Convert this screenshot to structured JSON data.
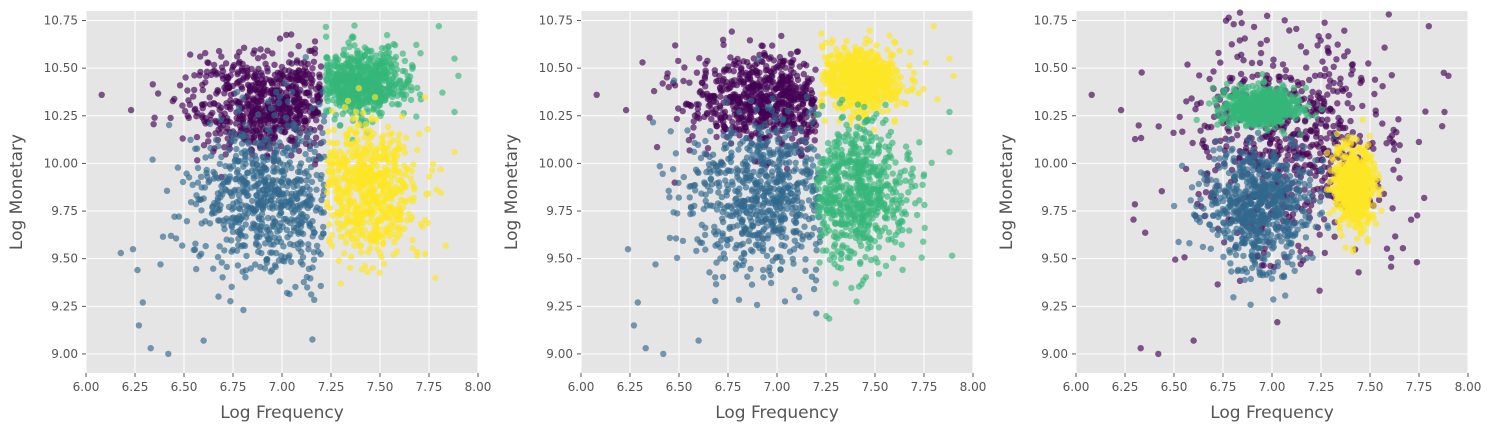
{
  "chart_data": [
    {
      "type": "scatter",
      "xlabel": "Log Frequency",
      "ylabel": "Log Monetary",
      "xlim": [
        6.0,
        8.0
      ],
      "ylim": [
        8.9,
        10.8
      ],
      "xticks": [
        "6.00",
        "6.25",
        "6.50",
        "6.75",
        "7.00",
        "7.25",
        "7.50",
        "7.75",
        "8.00"
      ],
      "yticks": [
        "9.00",
        "9.25",
        "9.50",
        "9.75",
        "10.00",
        "10.25",
        "10.50",
        "10.75"
      ],
      "grid": true,
      "series": [
        {
          "color": "#440154",
          "region": {
            "center": [
              6.95,
              10.32
            ],
            "spread": [
              0.22,
              0.13
            ],
            "x_max": 7.2
          },
          "outliers": [
            [
              6.08,
              10.36
            ],
            [
              6.23,
              10.28
            ],
            [
              6.35,
              10.24
            ],
            [
              6.48,
              10.41
            ],
            [
              6.62,
              10.53
            ]
          ]
        },
        {
          "color": "#31688e",
          "region": {
            "center": [
              6.93,
              9.8
            ],
            "spread": [
              0.2,
              0.22
            ],
            "x_max": 7.22
          },
          "outliers": [
            [
              6.24,
              9.55
            ],
            [
              6.29,
              9.27
            ],
            [
              6.33,
              9.03
            ],
            [
              6.27,
              9.15
            ],
            [
              6.42,
              9.0
            ],
            [
              6.6,
              9.07
            ],
            [
              6.38,
              9.47
            ],
            [
              6.34,
              10.02
            ]
          ]
        },
        {
          "color": "#35b779",
          "region": {
            "center": [
              7.4,
              10.42
            ],
            "spread": [
              0.12,
              0.09
            ],
            "x_min": 7.22
          },
          "outliers": [
            [
              7.8,
              10.72
            ],
            [
              7.9,
              10.46
            ],
            [
              7.88,
              10.55
            ],
            [
              7.88,
              10.27
            ]
          ]
        },
        {
          "color": "#fde725",
          "region": {
            "center": [
              7.42,
              9.87
            ],
            "spread": [
              0.13,
              0.17
            ],
            "x_min": 7.23
          },
          "outliers": [
            [
              7.3,
              9.37
            ],
            [
              7.88,
              10.06
            ]
          ]
        }
      ]
    },
    {
      "type": "scatter",
      "xlabel": "Log Frequency",
      "ylabel": "Log Monetary",
      "xlim": [
        6.0,
        8.0
      ],
      "ylim": [
        8.9,
        10.8
      ],
      "xticks": [
        "6.00",
        "6.25",
        "6.50",
        "6.75",
        "7.00",
        "7.25",
        "7.50",
        "7.75",
        "8.00"
      ],
      "yticks": [
        "9.00",
        "9.25",
        "9.50",
        "9.75",
        "10.00",
        "10.25",
        "10.50",
        "10.75"
      ],
      "grid": true,
      "series": [
        {
          "color": "#440154",
          "region": {
            "center": [
              6.97,
              10.33
            ],
            "spread": [
              0.2,
              0.12
            ],
            "x_max": 7.2
          },
          "outliers": [
            [
              6.08,
              10.36
            ],
            [
              6.23,
              10.28
            ],
            [
              6.35,
              10.24
            ],
            [
              6.48,
              10.41
            ]
          ]
        },
        {
          "color": "#31688e",
          "region": {
            "center": [
              6.93,
              9.82
            ],
            "spread": [
              0.2,
              0.22
            ],
            "x_max": 7.22
          },
          "outliers": [
            [
              6.24,
              9.55
            ],
            [
              6.29,
              9.27
            ],
            [
              6.33,
              9.03
            ],
            [
              6.27,
              9.15
            ],
            [
              6.42,
              9.0
            ],
            [
              6.6,
              9.07
            ],
            [
              6.38,
              9.47
            ]
          ]
        },
        {
          "color": "#fde725",
          "region": {
            "center": [
              7.43,
              10.44
            ],
            "spread": [
              0.11,
              0.09
            ],
            "x_min": 7.22
          },
          "outliers": [
            [
              7.8,
              10.72
            ],
            [
              7.9,
              10.46
            ],
            [
              7.88,
              10.55
            ]
          ]
        },
        {
          "color": "#35b779",
          "region": {
            "center": [
              7.4,
              9.85
            ],
            "spread": [
              0.14,
              0.19
            ],
            "x_min": 7.2
          },
          "outliers": [
            [
              7.3,
              9.37
            ],
            [
              7.88,
              10.27
            ],
            [
              7.88,
              10.06
            ],
            [
              7.52,
              9.42
            ]
          ]
        }
      ]
    },
    {
      "type": "scatter",
      "xlabel": "Log Frequency",
      "ylabel": "Log Monetary",
      "xlim": [
        6.0,
        8.0
      ],
      "ylim": [
        8.9,
        10.8
      ],
      "xticks": [
        "6.00",
        "6.25",
        "6.50",
        "6.75",
        "7.00",
        "7.25",
        "7.50",
        "7.75",
        "8.00"
      ],
      "yticks": [
        "9.00",
        "9.25",
        "9.50",
        "9.75",
        "10.00",
        "10.25",
        "10.50",
        "10.75"
      ],
      "grid": true,
      "series": [
        {
          "color": "#440154",
          "region": {
            "center": [
              7.1,
              10.1
            ],
            "spread": [
              0.28,
              0.3
            ]
          },
          "outliers": [
            [
              6.08,
              10.36
            ],
            [
              6.23,
              10.28
            ],
            [
              6.33,
              9.03
            ],
            [
              6.42,
              9.0
            ],
            [
              6.6,
              9.07
            ],
            [
              7.8,
              10.72
            ],
            [
              7.9,
              10.46
            ],
            [
              7.88,
              10.27
            ]
          ]
        },
        {
          "color": "#31688e",
          "region": {
            "center": [
              6.93,
              9.77
            ],
            "spread": [
              0.14,
              0.17
            ]
          },
          "outliers": []
        },
        {
          "color": "#35b779",
          "region": {
            "center": [
              6.95,
              10.3
            ],
            "spread": [
              0.1,
              0.05
            ]
          },
          "outliers": []
        },
        {
          "color": "#fde725",
          "region": {
            "center": [
              7.42,
              9.87
            ],
            "spread": [
              0.05,
              0.1
            ]
          },
          "outliers": []
        }
      ]
    }
  ]
}
